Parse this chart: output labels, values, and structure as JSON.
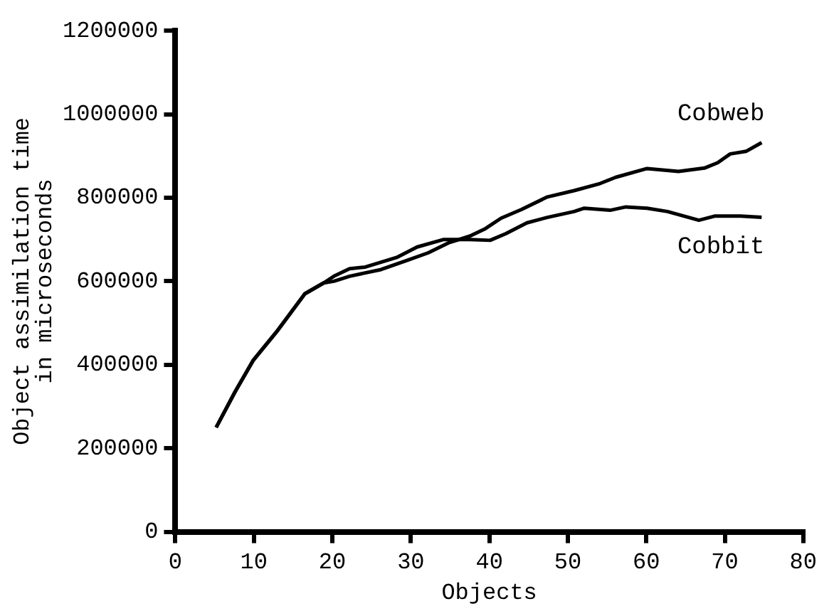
{
  "chart_data": {
    "type": "line",
    "xlabel": "Objects",
    "ylabel": "Object assimilation time\nin microseconds",
    "xlim": [
      0,
      80
    ],
    "xticks": [
      0,
      10,
      20,
      30,
      40,
      50,
      60,
      70,
      80
    ],
    "ylim": [
      0,
      1200000
    ],
    "yticks": [
      0,
      200000,
      400000,
      600000,
      800000,
      1000000,
      1200000
    ],
    "grid": false,
    "legend": false,
    "marker": "none",
    "line_style": "solid",
    "series": [
      {
        "name": "Cobweb",
        "color": "#000000",
        "x": [
          5.2,
          7.6,
          9.9,
          12.9,
          16.5,
          18.9,
          20.2,
          22.2,
          26.2,
          29.5,
          32.2,
          34.8,
          37.5,
          39.5,
          41.5,
          44.1,
          47.4,
          50.8,
          54.1,
          56.1,
          60.1,
          64.1,
          67.4,
          69.1,
          70.7,
          72.7,
          74.7
        ],
        "values": [
          250000,
          335000,
          410000,
          479000,
          570000,
          596000,
          600000,
          612000,
          628000,
          650000,
          668000,
          692000,
          708000,
          726000,
          751000,
          772000,
          802000,
          817000,
          834000,
          849000,
          870000,
          863000,
          871000,
          884000,
          905000,
          911000,
          932000
        ]
      },
      {
        "name": "Cobbit",
        "color": "#000000",
        "x": [
          5.2,
          7.6,
          9.9,
          12.9,
          16.5,
          18.9,
          20.2,
          22.2,
          24.2,
          28.2,
          30.8,
          34.2,
          37.5,
          40.1,
          42.1,
          44.8,
          47.4,
          50.8,
          52.1,
          55.4,
          57.4,
          60.1,
          62.7,
          66.7,
          68.7,
          72,
          74.7
        ],
        "values": [
          250000,
          335000,
          410000,
          479000,
          570000,
          596000,
          612000,
          630000,
          634000,
          657000,
          682000,
          700000,
          700000,
          698000,
          714000,
          740000,
          753000,
          767000,
          775000,
          770000,
          778000,
          775000,
          767000,
          746000,
          756000,
          756000,
          753000
        ]
      }
    ]
  }
}
